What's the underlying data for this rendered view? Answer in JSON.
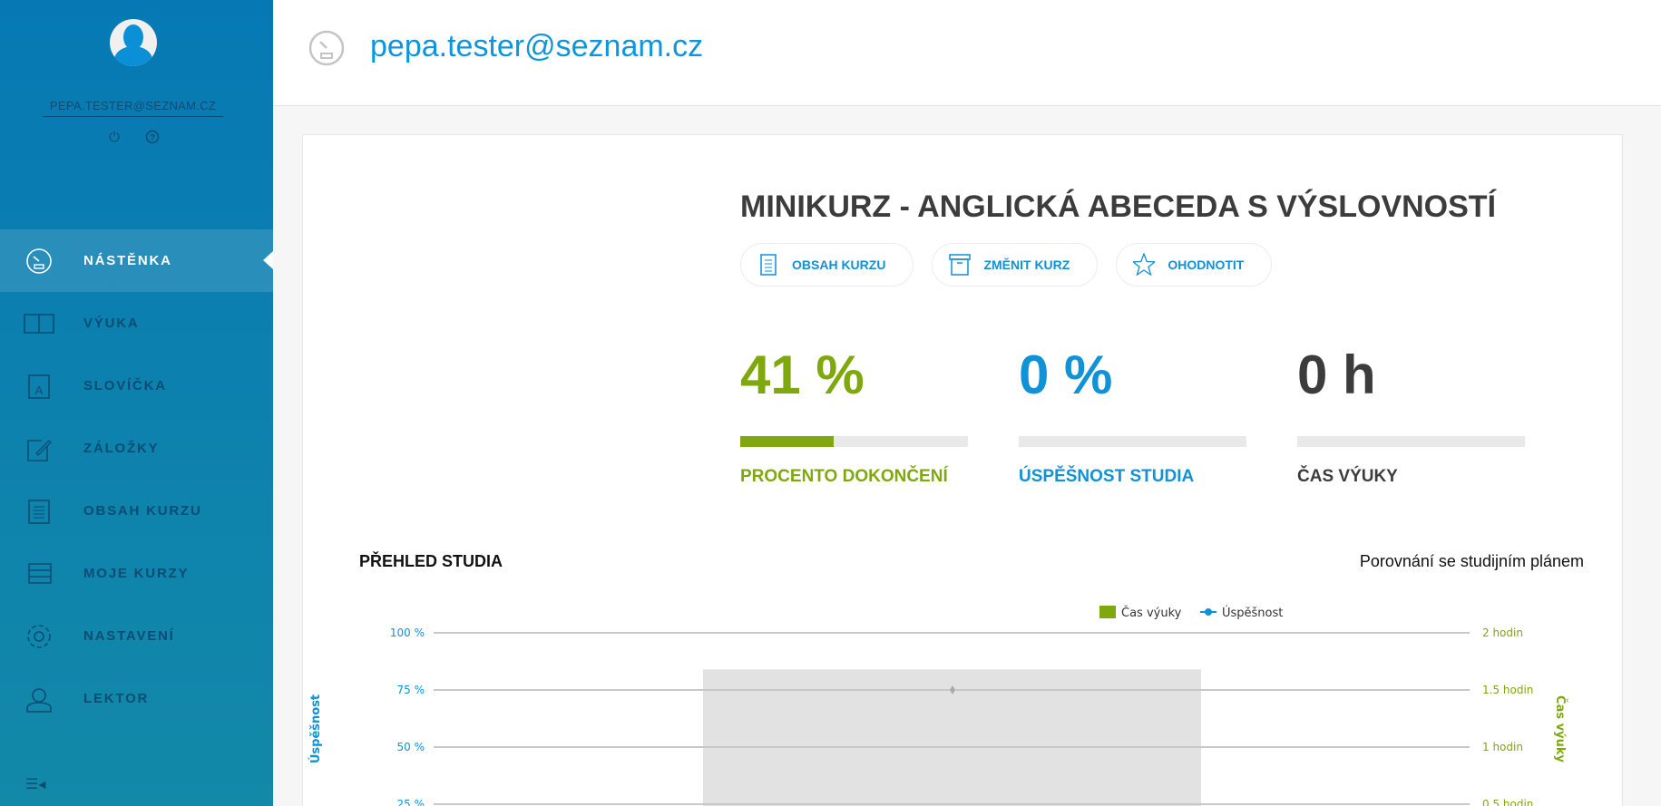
{
  "sidebar": {
    "user_email": "PEPA.TESTER@SEZNAM.CZ",
    "icons": [
      "power-icon",
      "help-icon"
    ],
    "items": [
      {
        "label": "NÁSTĚNKA",
        "icon": "dashboard-icon",
        "active": true
      },
      {
        "label": "VÝUKA",
        "icon": "book-icon"
      },
      {
        "label": "SLOVÍČKA",
        "icon": "vocabulary-icon"
      },
      {
        "label": "ZÁLOŽKY",
        "icon": "bookmark-edit-icon"
      },
      {
        "label": "OBSAH KURZU",
        "icon": "document-icon"
      },
      {
        "label": "MOJE KURZY",
        "icon": "courses-list-icon"
      },
      {
        "label": "NASTAVENÍ",
        "icon": "gear-icon"
      },
      {
        "label": "LEKTOR",
        "icon": "lector-icon"
      }
    ],
    "collapse_icon": "collapse-menu-icon"
  },
  "header": {
    "title": "pepa.tester@seznam.cz",
    "icon": "dashboard-icon"
  },
  "course": {
    "title": "MINIKURZ - ANGLICKÁ ABECEDA S VÝSLOVNOSTÍ",
    "buttons": [
      {
        "label": "OBSAH KURZU",
        "icon": "document-icon"
      },
      {
        "label": "ZMĚNIT KURZ",
        "icon": "archive-box-icon"
      },
      {
        "label": "OHODNOTIT",
        "icon": "star-icon"
      }
    ],
    "stats": [
      {
        "value": "41 %",
        "label": "PROCENTO DOKONČENÍ",
        "progress": 41,
        "color": "#7fa80e"
      },
      {
        "value": "0 %",
        "label": "ÚSPĚŠNOST STUDIA",
        "progress": 0,
        "color": "#1192d6"
      },
      {
        "value": "0 h",
        "label": "ČAS VÝUKY",
        "progress": 0,
        "color": "#3c3c3c"
      }
    ]
  },
  "overview": {
    "title": "PŘEHLED STUDIA",
    "compare_label": "Porovnání se studijním plánem"
  },
  "chart_data": {
    "type": "bar",
    "legend": [
      {
        "name": "Čas výuky",
        "color": "#7fa80e"
      },
      {
        "name": "Úspěšnost",
        "color": "#1192d6"
      }
    ],
    "legend_placement": "top-center",
    "left_axis": {
      "label": "Úspěšnost",
      "ticks": [
        "100 %",
        "75 %",
        "50 %",
        "25 %"
      ],
      "color": "#1192d6"
    },
    "right_axis": {
      "label": "Čas výuky",
      "ticks": [
        "2 hodin",
        "1.5 hodin",
        "1 hodin",
        "0.5 hodin"
      ],
      "color": "#7fa80e"
    },
    "grid": true,
    "highlight_band": {
      "top_percent": 84
    },
    "points": [
      {
        "value": 75
      }
    ]
  }
}
